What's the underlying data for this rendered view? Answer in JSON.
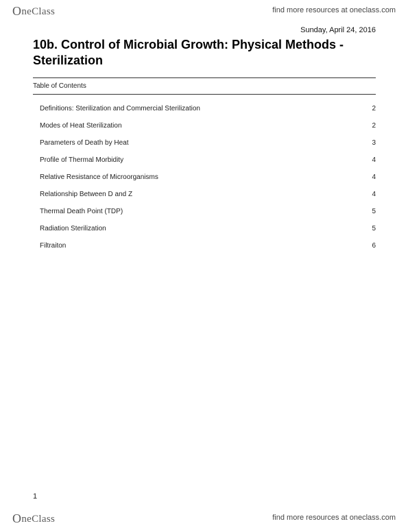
{
  "brand": {
    "name": "OneClass",
    "link_text": "find more resources at oneclass.com"
  },
  "document": {
    "date": "Sunday, April 24, 2016",
    "title": "10b. Control of Microbial Growth: Physical Methods - Sterilization",
    "toc_label": "Table of Contents",
    "page_number": "1"
  },
  "toc": [
    {
      "title": "Definitions: Sterilization and Commercial Sterilization",
      "page": "2"
    },
    {
      "title": "Modes of Heat Sterilization",
      "page": "2"
    },
    {
      "title": "Parameters of Death by Heat",
      "page": "3"
    },
    {
      "title": "Profile of Thermal Morbidity",
      "page": "4"
    },
    {
      "title": "Relative Resistance of Microorganisms",
      "page": "4"
    },
    {
      "title": "Relationship Between D and Z",
      "page": "4"
    },
    {
      "title": "Thermal Death Point (TDP)",
      "page": "5"
    },
    {
      "title": "Radiation Sterilization",
      "page": "5"
    },
    {
      "title": "Filtraiton",
      "page": "6"
    }
  ],
  "colors": {
    "background": "#ffffff",
    "text": "#000000",
    "muted": "#5a5a5a",
    "rule": "#333333"
  }
}
